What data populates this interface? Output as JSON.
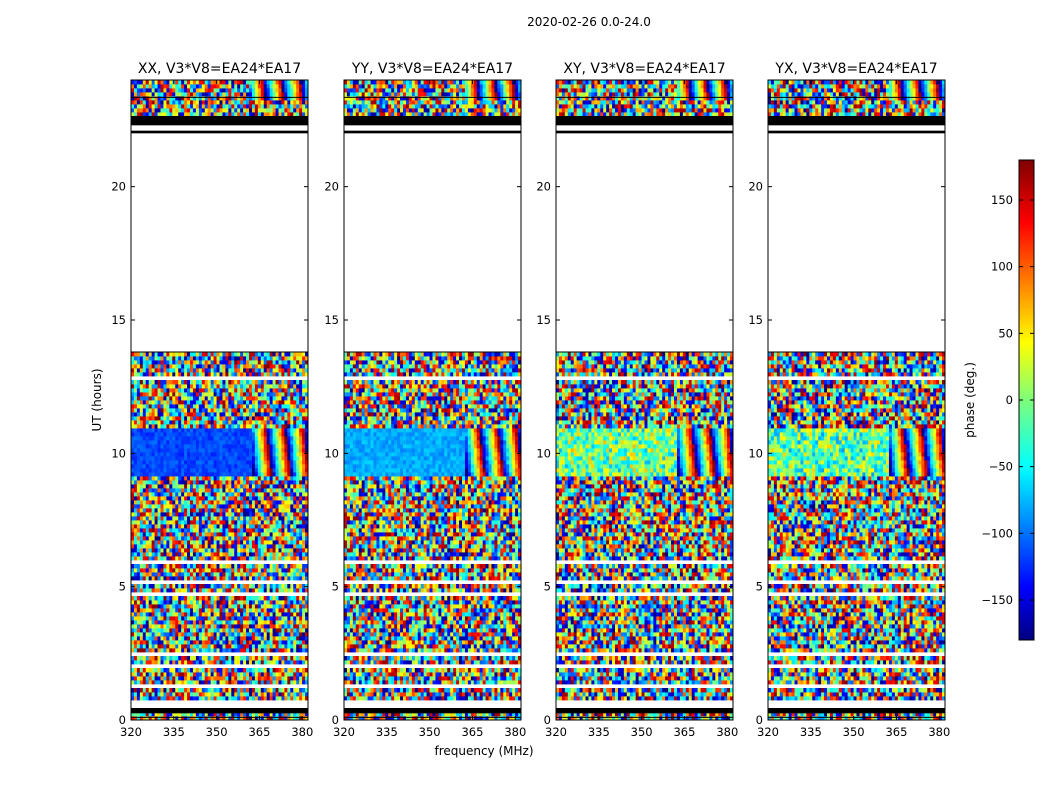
{
  "chart_data": {
    "type": "heatmap",
    "suptitle": "2020-02-26 0.0-24.0",
    "xlabel": "frequency (MHz)",
    "ylabel": "UT (hours)",
    "colorbar_label": "phase (deg.)",
    "colorbar_range": [
      -180,
      180
    ],
    "colorbar_ticks": [
      "150",
      "100",
      "50",
      "0",
      "−50",
      "−100",
      "−150"
    ],
    "colorbar_tick_values": [
      150,
      100,
      50,
      0,
      -50,
      -100,
      -150
    ],
    "colormap": "jet",
    "xlim": [
      320,
      382
    ],
    "ylim": [
      0,
      24
    ],
    "x_ticks": [
      "320",
      "335",
      "350",
      "365",
      "380"
    ],
    "x_tick_values": [
      320,
      335,
      350,
      365,
      380
    ],
    "y_ticks": [
      "0",
      "5",
      "10",
      "15",
      "20"
    ],
    "y_tick_values": [
      0,
      5,
      10,
      15,
      20
    ],
    "panels": [
      {
        "title": "XX, V3*V8=EA24*EA17",
        "pol": "XX",
        "smooth_phase_deg": -110
      },
      {
        "title": "YY, V3*V8=EA24*EA17",
        "pol": "YY",
        "smooth_phase_deg": -75
      },
      {
        "title": "XY, V3*V8=EA24*EA17",
        "pol": "XY",
        "smooth_phase_deg": 0
      },
      {
        "title": "YX, V3*V8=EA24*EA17",
        "pol": "YX",
        "smooth_phase_deg": -10
      }
    ],
    "no_data_hours": [
      [
        13.8,
        22.5
      ]
    ],
    "flagged_hours": [
      [
        22.3,
        22.65
      ],
      [
        22.0,
        22.1
      ],
      [
        0.25,
        0.45
      ]
    ],
    "coherent_hours": [
      [
        9.2,
        10.9
      ]
    ],
    "fringe_start_mhz": 362
  }
}
